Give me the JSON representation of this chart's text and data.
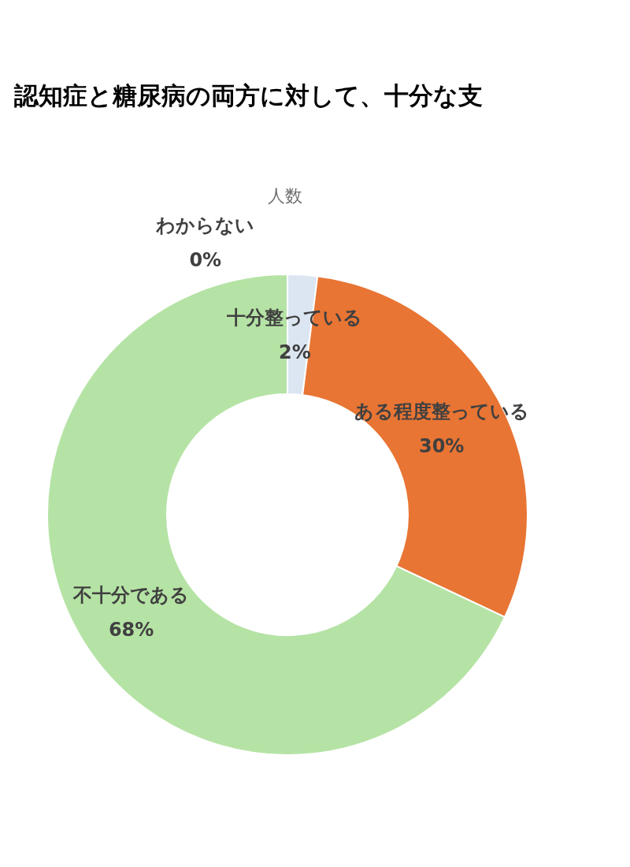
{
  "chart_data": {
    "type": "donut",
    "title": "認知症と糖尿病の両方に対して、十分な支",
    "subtitle": "人数",
    "categories": [
      "わからない",
      "十分整っている",
      "ある程度整っている",
      "不十分である"
    ],
    "values": [
      0,
      2,
      30,
      68
    ],
    "value_labels": [
      "0%",
      "2%",
      "30%",
      "68%"
    ],
    "colors": [
      "#f5c342",
      "#dce6f2",
      "#e87534",
      "#b5e3a5"
    ]
  }
}
